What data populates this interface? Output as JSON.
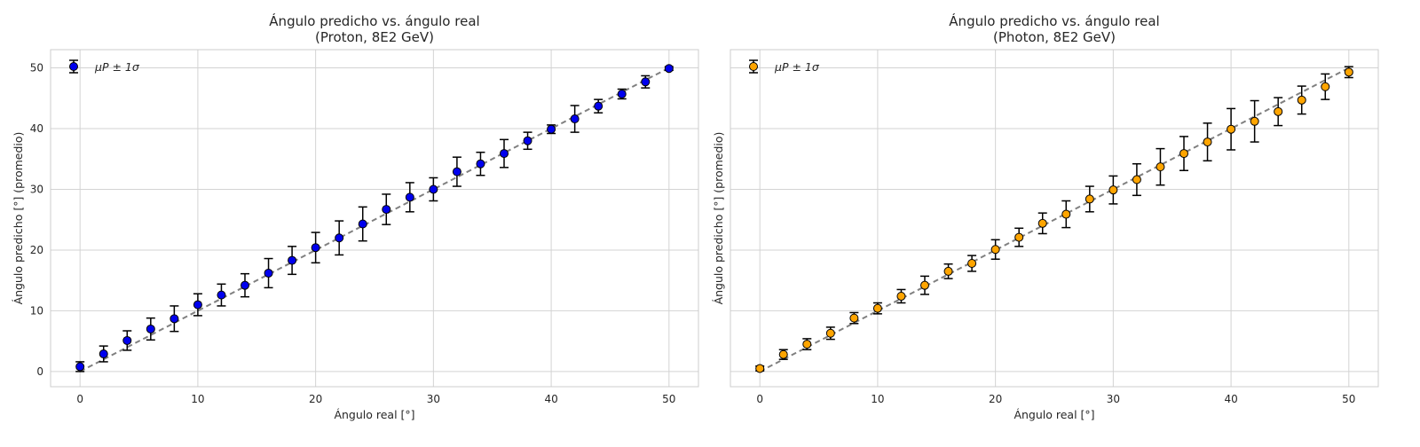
{
  "chart_data": [
    {
      "type": "scatter",
      "title": "Ángulo predicho vs. ángulo real",
      "subtitle": "(Proton, 8E2 GeV)",
      "xlabel": "Ángulo real [°]",
      "ylabel": "Ángulo predicho [°] (promedio)",
      "xlim": [
        -2.5,
        52.5
      ],
      "ylim": [
        -2.5,
        53
      ],
      "xticks": [
        0,
        10,
        20,
        30,
        40,
        50
      ],
      "yticks": [
        0,
        10,
        20,
        30,
        40,
        50
      ],
      "grid": true,
      "legend_position": "top-left",
      "reference_line": "y = x (dashed)",
      "series": [
        {
          "name": "μP ± 1σ",
          "color": "#0000ee",
          "x": [
            0,
            2,
            4,
            6,
            8,
            10,
            12,
            14,
            16,
            18,
            20,
            22,
            24,
            26,
            28,
            30,
            32,
            34,
            36,
            38,
            40,
            42,
            44,
            46,
            48,
            50
          ],
          "y": [
            0.8,
            2.9,
            5.1,
            7.0,
            8.7,
            11.0,
            12.6,
            14.2,
            16.2,
            18.3,
            20.4,
            22.0,
            24.3,
            26.7,
            28.7,
            30.0,
            32.9,
            34.2,
            35.9,
            38.0,
            39.9,
            41.6,
            43.7,
            45.7,
            47.7,
            49.9
          ],
          "err": [
            0.8,
            1.3,
            1.6,
            1.8,
            2.1,
            1.8,
            1.8,
            1.9,
            2.4,
            2.3,
            2.5,
            2.8,
            2.8,
            2.5,
            2.4,
            1.9,
            2.4,
            1.9,
            2.3,
            1.4,
            0.7,
            2.2,
            1.1,
            0.8,
            1.0,
            0.3
          ]
        }
      ]
    },
    {
      "type": "scatter",
      "title": "Ángulo predicho vs. ángulo real",
      "subtitle": "(Photon, 8E2 GeV)",
      "xlabel": "Ángulo real [°]",
      "ylabel": "Ángulo predicho [°] (promedio)",
      "xlim": [
        -2.5,
        52.5
      ],
      "ylim": [
        -2.5,
        53
      ],
      "xticks": [
        0,
        10,
        20,
        30,
        40,
        50
      ],
      "yticks": [],
      "grid": true,
      "legend_position": "top-left",
      "reference_line": "y = x (dashed)",
      "series": [
        {
          "name": "μP ± 1σ",
          "color": "#ffa500",
          "x": [
            0,
            2,
            4,
            6,
            8,
            10,
            12,
            14,
            16,
            18,
            20,
            22,
            24,
            26,
            28,
            30,
            32,
            34,
            36,
            38,
            40,
            42,
            44,
            46,
            48,
            50
          ],
          "y": [
            0.5,
            2.8,
            4.5,
            6.3,
            8.8,
            10.4,
            12.4,
            14.2,
            16.5,
            17.8,
            20.1,
            22.1,
            24.4,
            25.9,
            28.4,
            29.9,
            31.6,
            33.7,
            35.9,
            37.8,
            39.9,
            41.2,
            42.8,
            44.7,
            46.9,
            49.3
          ],
          "err": [
            0.4,
            0.8,
            0.9,
            1.0,
            0.9,
            0.9,
            1.1,
            1.5,
            1.2,
            1.3,
            1.6,
            1.5,
            1.7,
            2.2,
            2.1,
            2.3,
            2.6,
            3.0,
            2.8,
            3.1,
            3.4,
            3.4,
            2.3,
            2.3,
            2.1,
            0.9
          ]
        }
      ]
    }
  ]
}
